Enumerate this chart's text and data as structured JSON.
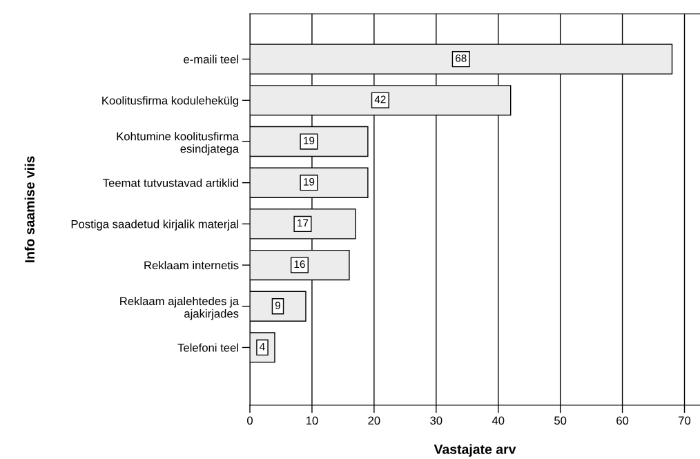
{
  "chart_data": {
    "type": "bar",
    "orientation": "horizontal",
    "xlabel": "Vastajate arv",
    "ylabel": "Info saamise viis",
    "categories": [
      "e-maili teel",
      "Koolitusfirma kodulehekülg",
      "Kohtumine koolitusfirma\nesindjatega",
      "Teemat tutvustavad artiklid",
      "Postiga saadetud kirjalik materjal",
      "Reklaam internetis",
      "Reklaam ajalehtedes ja\najakirjades",
      "Telefoni teel"
    ],
    "values": [
      68,
      42,
      19,
      19,
      17,
      16,
      9,
      4
    ],
    "color": "#ececec",
    "data_labels": true,
    "grid": "x",
    "xlim": [
      0,
      72.5
    ],
    "xticks": [
      0,
      10,
      20,
      30,
      40,
      50,
      60,
      70
    ]
  }
}
